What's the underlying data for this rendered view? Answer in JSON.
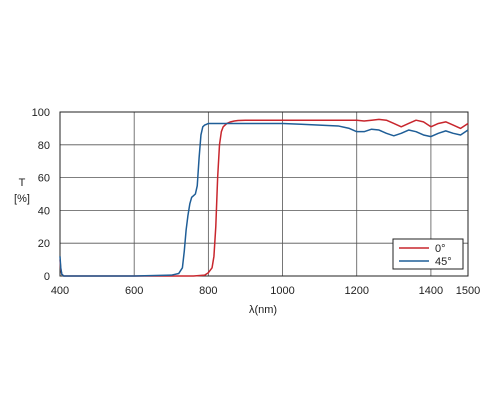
{
  "chart_data": {
    "type": "line",
    "xlabel": "λ(nm)",
    "ylabel_symbol": "T",
    "ylabel_unit": "[%]",
    "xlim": [
      400,
      1500
    ],
    "ylim": [
      0,
      100
    ],
    "xticks": [
      400,
      600,
      800,
      1000,
      1200,
      1400,
      1500
    ],
    "yticks": [
      0,
      20,
      40,
      60,
      80,
      100
    ],
    "grid": true,
    "legend_position": "bottom-right",
    "series": [
      {
        "name": "0°",
        "color": "#c8262d",
        "x": [
          400,
          402,
          405,
          410,
          420,
          500,
          600,
          700,
          760,
          790,
          800,
          810,
          815,
          820,
          825,
          830,
          835,
          840,
          845,
          850,
          860,
          870,
          880,
          900,
          950,
          1000,
          1050,
          1100,
          1150,
          1200,
          1220,
          1240,
          1260,
          1280,
          1300,
          1320,
          1340,
          1360,
          1380,
          1400,
          1420,
          1440,
          1460,
          1480,
          1500
        ],
        "y": [
          10,
          4,
          1,
          0,
          0,
          0,
          0,
          0,
          0,
          0.5,
          2,
          5,
          12,
          30,
          60,
          80,
          88,
          91,
          92,
          93,
          94,
          94.5,
          94.8,
          95,
          95,
          95,
          95,
          95,
          95,
          95,
          94.5,
          95,
          95.5,
          95,
          93,
          91,
          93,
          95,
          94,
          91,
          93,
          94,
          92,
          90,
          93
        ]
      },
      {
        "name": "45°",
        "color": "#1f5e97",
        "x": [
          400,
          402,
          405,
          410,
          420,
          500,
          600,
          700,
          720,
          730,
          735,
          740,
          745,
          750,
          755,
          760,
          765,
          770,
          775,
          780,
          785,
          790,
          795,
          800,
          810,
          820,
          850,
          900,
          950,
          1000,
          1050,
          1100,
          1150,
          1180,
          1200,
          1220,
          1240,
          1260,
          1280,
          1300,
          1320,
          1340,
          1360,
          1380,
          1400,
          1420,
          1440,
          1460,
          1480,
          1500
        ],
        "y": [
          12,
          5,
          1,
          0,
          0,
          0,
          0,
          0.5,
          1.5,
          5,
          15,
          28,
          37,
          44,
          48,
          49,
          50,
          55,
          72,
          86,
          91,
          92,
          92.5,
          93,
          93,
          93,
          93,
          93,
          93,
          93,
          92.5,
          92,
          91.5,
          90,
          88,
          88,
          89.5,
          89,
          87,
          85.5,
          87,
          89,
          88,
          86,
          85,
          87,
          88.5,
          87,
          86,
          89
        ]
      }
    ]
  }
}
